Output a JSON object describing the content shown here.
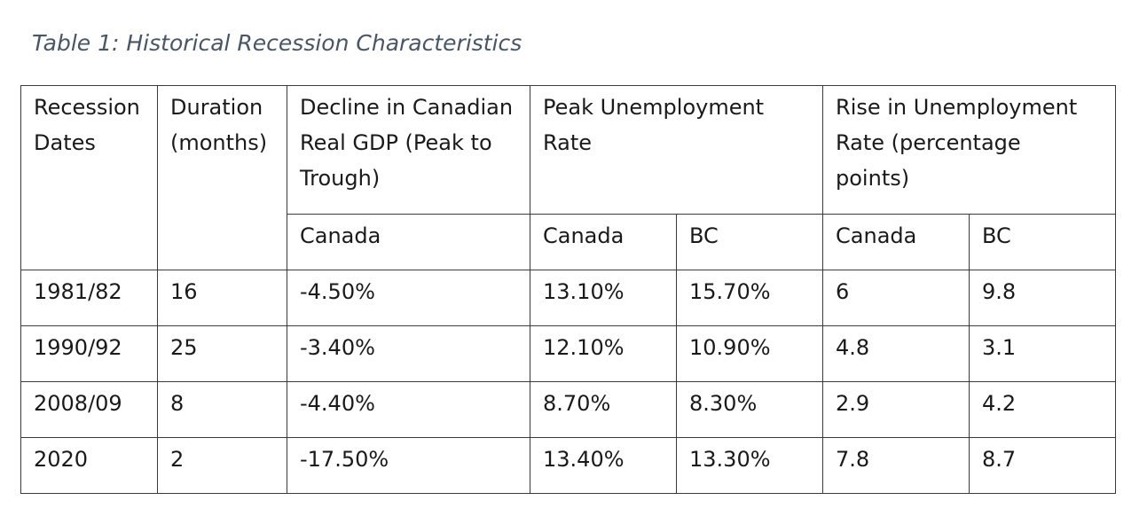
{
  "caption": "Table 1: Historical Recession Characteristics",
  "headers": {
    "recession_dates": "Recession Dates",
    "duration": "Duration (months)",
    "gdp_decline": "Decline in Canadian Real GDP (Peak to Trough)",
    "peak_unemployment": "Peak Unemployment Rate",
    "rise_unemployment": "Rise in Unemployment Rate (percentage points)",
    "sub": [
      "Canada",
      "Canada",
      "BC",
      "Canada",
      "BC"
    ]
  },
  "rows": [
    [
      "1981/82",
      "16",
      "-4.50%",
      "13.10%",
      "15.70%",
      "6",
      "9.8"
    ],
    [
      "1990/92",
      "25",
      "-3.40%",
      "12.10%",
      "10.90%",
      "4.8",
      "3.1"
    ],
    [
      "2008/09",
      "8",
      "-4.40%",
      "8.70%",
      "8.30%",
      "2.9",
      "4.2"
    ],
    [
      "2020",
      "2",
      "-17.50%",
      "13.40%",
      "13.30%",
      "7.8",
      "8.7"
    ]
  ]
}
